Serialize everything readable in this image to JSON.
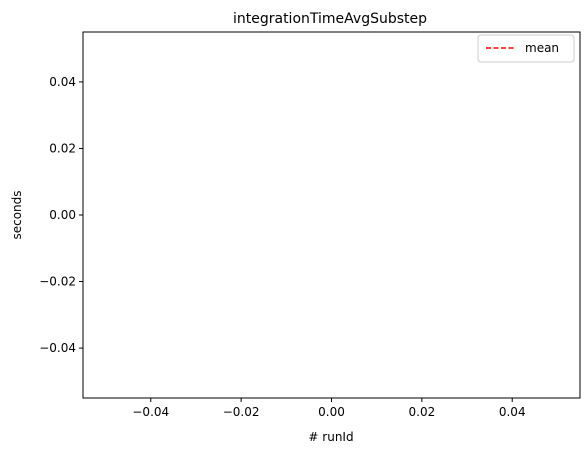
{
  "chart_data": {
    "type": "line",
    "title": "integrationTimeAvgSubstep",
    "xlabel": "# runId",
    "ylabel": "seconds",
    "xlim": [
      -0.055,
      0.055
    ],
    "ylim": [
      -0.055,
      0.055
    ],
    "x_ticks": [
      -0.04,
      -0.02,
      0.0,
      0.02,
      0.04
    ],
    "x_tick_labels": [
      "−0.04",
      "−0.02",
      "0.00",
      "0.02",
      "0.04"
    ],
    "y_ticks": [
      0.04,
      0.02,
      0.0,
      -0.02,
      -0.04
    ],
    "y_tick_labels": [
      "0.04",
      "0.02",
      "0.00",
      "−0.02",
      "−0.04"
    ],
    "series": [
      {
        "name": "mean",
        "x": [],
        "y": [],
        "color": "#ff0000",
        "style": "dashed"
      }
    ],
    "legend": {
      "position": "top-right",
      "entries": [
        "mean"
      ]
    },
    "grid": false
  }
}
